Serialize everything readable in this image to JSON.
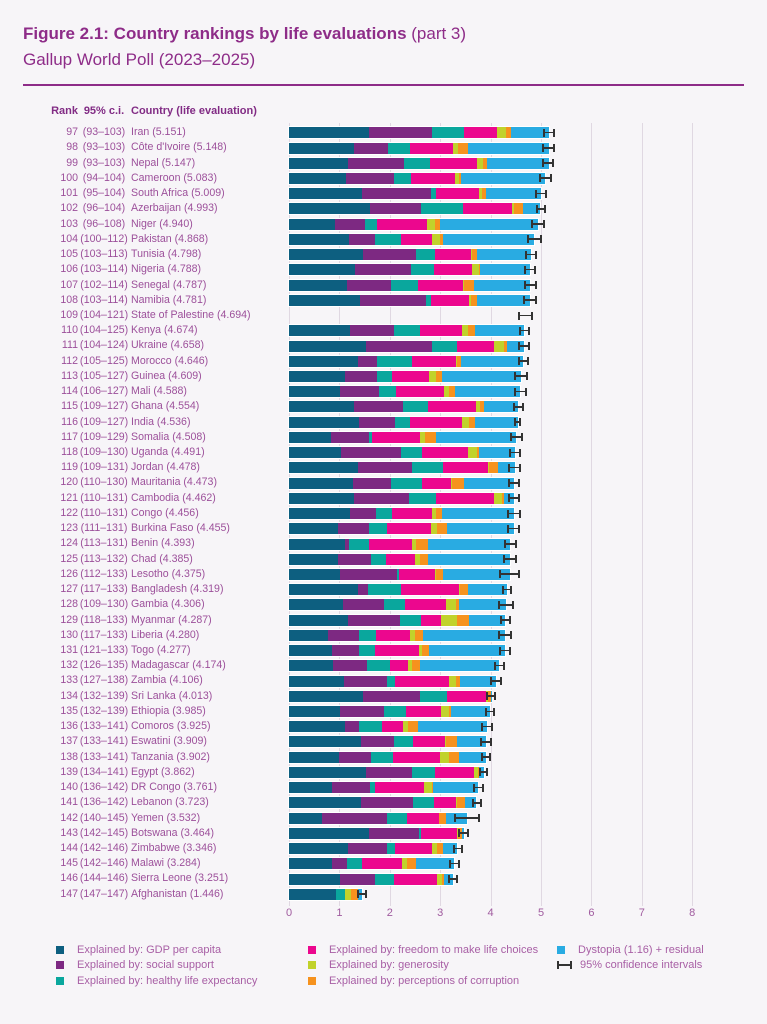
{
  "page": {
    "title_bold": "Figure 2.1: Country rankings by life evaluations",
    "title_tail": " (part 3)",
    "subtitle": "Gallup World Poll (2023–2025)"
  },
  "table_header": {
    "rank": "Rank",
    "ci": "95% c.i.",
    "country": "Country (life evaluation)"
  },
  "colors": {
    "gdp": "#0d5f80",
    "social": "#7d2982",
    "healthy": "#0aa79d",
    "freedom": "#ec078e",
    "generosity": "#c1d22b",
    "corruption": "#f6921e",
    "residual": "#29abe2",
    "title": "#8e2c88",
    "row_text": "#9c4f9a",
    "header_text": "#822c85",
    "axis_text": "#a05b9f",
    "legend_text": "#a85fa5",
    "gridline": "#e0d8e2",
    "error_bar": "#333333",
    "background": "#f7f5f8"
  },
  "legend": {
    "columns": [
      [
        {
          "key": "gdp",
          "label": "Explained by: GDP per capita"
        },
        {
          "key": "social",
          "label": "Explained by: social support"
        },
        {
          "key": "healthy",
          "label": "Explained by: healthy life expectancy"
        }
      ],
      [
        {
          "key": "freedom",
          "label": "Explained by: freedom to make life choices"
        },
        {
          "key": "generosity",
          "label": "Explained by: generosity"
        },
        {
          "key": "corruption",
          "label": "Explained by: perceptions of corruption"
        }
      ],
      [
        {
          "key": "residual",
          "label": "Dystopia (1.16) + residual"
        },
        {
          "key": "ci",
          "label": "95% confidence intervals"
        }
      ]
    ]
  },
  "chart_data": {
    "type": "bar",
    "orientation": "horizontal",
    "stacked": true,
    "title": "Figure 2.1: Country rankings by life evaluations (part 3)",
    "subtitle": "Gallup World Poll (2023–2025)",
    "xlabel": "",
    "ylabel": "",
    "xlim": [
      0,
      8
    ],
    "x_ticks": [
      0,
      1,
      2,
      3,
      4,
      5,
      6,
      7,
      8
    ],
    "grid": true,
    "series_names": [
      "Explained by: GDP per capita",
      "Explained by: social support",
      "Explained by: healthy life expectancy",
      "Explained by: freedom to make life choices",
      "Explained by: generosity",
      "Explained by: perceptions of corruption",
      "Dystopia (1.16) + residual"
    ],
    "segment_keys": [
      "gdp",
      "social",
      "healthy",
      "freedom",
      "generosity",
      "corruption",
      "residual"
    ],
    "countries": [
      {
        "rank": 97,
        "ci": "(93–103)",
        "name": "Iran",
        "score": 5.151,
        "hw": 0.12,
        "seg": [
          1.58,
          1.25,
          0.64,
          0.65,
          0.18,
          0.1,
          0.75
        ]
      },
      {
        "rank": 98,
        "ci": "(93–103)",
        "name": "Côte d'Ivoire",
        "score": 5.148,
        "hw": 0.13,
        "seg": [
          1.28,
          0.69,
          0.43,
          0.86,
          0.09,
          0.2,
          1.6
        ]
      },
      {
        "rank": 99,
        "ci": "(93–103)",
        "name": "Nepal",
        "score": 5.147,
        "hw": 0.12,
        "seg": [
          1.18,
          1.1,
          0.51,
          0.95,
          0.1,
          0.08,
          1.23
        ]
      },
      {
        "rank": 100,
        "ci": "(94–104)",
        "name": "Cameroon",
        "score": 5.083,
        "hw": 0.13,
        "seg": [
          1.14,
          0.94,
          0.35,
          0.86,
          0.08,
          0.05,
          1.66
        ]
      },
      {
        "rank": 101,
        "ci": "(95–104)",
        "name": "South Africa",
        "score": 5.009,
        "hw": 0.12,
        "seg": [
          1.45,
          1.36,
          0.1,
          0.86,
          0.06,
          0.07,
          1.1
        ]
      },
      {
        "rank": 102,
        "ci": "(96–104)",
        "name": "Azerbaijan",
        "score": 4.993,
        "hw": 0.1,
        "seg": [
          1.6,
          1.01,
          0.84,
          0.97,
          0.04,
          0.18,
          0.35
        ]
      },
      {
        "rank": 103,
        "ci": "(96–108)",
        "name": "Niger",
        "score": 4.94,
        "hw": 0.14,
        "seg": [
          0.91,
          0.6,
          0.24,
          0.99,
          0.15,
          0.1,
          1.95
        ]
      },
      {
        "rank": 104,
        "ci": "(100–112)",
        "name": "Pakistan",
        "score": 4.868,
        "hw": 0.15,
        "seg": [
          1.2,
          0.51,
          0.52,
          0.61,
          0.15,
          0.07,
          1.81
        ]
      },
      {
        "rank": 105,
        "ci": "(103–113)",
        "name": "Tunisia",
        "score": 4.798,
        "hw": 0.12,
        "seg": [
          1.47,
          1.05,
          0.37,
          0.72,
          0.03,
          0.09,
          1.07
        ]
      },
      {
        "rank": 106,
        "ci": "(103–114)",
        "name": "Nigeria",
        "score": 4.788,
        "hw": 0.12,
        "seg": [
          1.3,
          1.13,
          0.44,
          0.76,
          0.15,
          0.02,
          0.99
        ]
      },
      {
        "rank": 107,
        "ci": "(102–114)",
        "name": "Senegal",
        "score": 4.787,
        "hw": 0.13,
        "seg": [
          1.16,
          0.87,
          0.52,
          0.9,
          0.02,
          0.2,
          1.12
        ]
      },
      {
        "rank": 108,
        "ci": "(103–114)",
        "name": "Namibia",
        "score": 4.781,
        "hw": 0.13,
        "seg": [
          1.4,
          1.31,
          0.1,
          0.77,
          0.03,
          0.12,
          1.05
        ]
      },
      {
        "rank": 109,
        "ci": "(104–121)",
        "name": "State of Palestine",
        "score": 4.694,
        "hw": 0.15,
        "no_breakdown": true,
        "seg": null
      },
      {
        "rank": 110,
        "ci": "(104–125)",
        "name": "Kenya",
        "score": 4.674,
        "hw": 0.11,
        "seg": [
          1.22,
          0.86,
          0.51,
          0.84,
          0.12,
          0.15,
          0.97
        ]
      },
      {
        "rank": 111,
        "ci": "(104–124)",
        "name": "Ukraine",
        "score": 4.658,
        "hw": 0.12,
        "seg": [
          1.53,
          1.31,
          0.5,
          0.73,
          0.2,
          0.05,
          0.34
        ]
      },
      {
        "rank": 112,
        "ci": "(105–125)",
        "name": "Morocco",
        "score": 4.646,
        "hw": 0.11,
        "seg": [
          1.36,
          0.39,
          0.69,
          0.88,
          0.02,
          0.07,
          1.24
        ]
      },
      {
        "rank": 113,
        "ci": "(105–127)",
        "name": "Guinea",
        "score": 4.609,
        "hw": 0.14,
        "seg": [
          1.12,
          0.63,
          0.3,
          0.73,
          0.13,
          0.13,
          1.57
        ]
      },
      {
        "rank": 114,
        "ci": "(106–127)",
        "name": "Mali",
        "score": 4.588,
        "hw": 0.13,
        "seg": [
          1.02,
          0.76,
          0.35,
          0.95,
          0.09,
          0.13,
          1.29
        ]
      },
      {
        "rank": 115,
        "ci": "(109–127)",
        "name": "Ghana",
        "score": 4.554,
        "hw": 0.11,
        "seg": [
          1.29,
          0.97,
          0.49,
          0.97,
          0.08,
          0.07,
          0.68
        ]
      },
      {
        "rank": 116,
        "ci": "(109–127)",
        "name": "India",
        "score": 4.536,
        "hw": 0.07,
        "seg": [
          1.38,
          0.73,
          0.3,
          1.02,
          0.15,
          0.12,
          0.84
        ]
      },
      {
        "rank": 117,
        "ci": "(109–129)",
        "name": "Somalia",
        "score": 4.508,
        "hw": 0.13,
        "seg": [
          0.83,
          0.76,
          0.05,
          0.96,
          0.1,
          0.22,
          1.59
        ]
      },
      {
        "rank": 118,
        "ci": "(109–130)",
        "name": "Uganda",
        "score": 4.491,
        "hw": 0.12,
        "seg": [
          1.04,
          1.18,
          0.41,
          0.92,
          0.19,
          0.03,
          0.72
        ]
      },
      {
        "rank": 119,
        "ci": "(109–131)",
        "name": "Jordan",
        "score": 4.478,
        "hw": 0.13,
        "seg": [
          1.36,
          1.08,
          0.62,
          0.89,
          0.01,
          0.19,
          0.33
        ]
      },
      {
        "rank": 120,
        "ci": "(110–130)",
        "name": "Mauritania",
        "score": 4.473,
        "hw": 0.12,
        "seg": [
          1.27,
          0.76,
          0.61,
          0.58,
          0.02,
          0.24,
          0.99
        ]
      },
      {
        "rank": 121,
        "ci": "(110–131)",
        "name": "Cambodia",
        "score": 4.462,
        "hw": 0.12,
        "seg": [
          1.29,
          1.09,
          0.53,
          1.16,
          0.15,
          0.04,
          0.2
        ]
      },
      {
        "rank": 122,
        "ci": "(110–131)",
        "name": "Congo",
        "score": 4.456,
        "hw": 0.14,
        "seg": [
          1.21,
          0.51,
          0.33,
          0.78,
          0.08,
          0.12,
          1.43
        ]
      },
      {
        "rank": 123,
        "ci": "(111–131)",
        "name": "Burkina Faso",
        "score": 4.455,
        "hw": 0.13,
        "seg": [
          0.97,
          0.61,
          0.37,
          0.86,
          0.13,
          0.2,
          1.32
        ]
      },
      {
        "rank": 124,
        "ci": "(113–131)",
        "name": "Benin",
        "score": 4.393,
        "hw": 0.13,
        "seg": [
          1.12,
          0.08,
          0.38,
          0.86,
          0.09,
          0.22,
          1.64
        ]
      },
      {
        "rank": 125,
        "ci": "(113–132)",
        "name": "Chad",
        "score": 4.385,
        "hw": 0.14,
        "seg": [
          0.97,
          0.65,
          0.31,
          0.58,
          0.1,
          0.14,
          1.64
        ]
      },
      {
        "rank": 126,
        "ci": "(112–133)",
        "name": "Lesotho",
        "score": 4.375,
        "hw": 0.21,
        "seg": [
          1.01,
          1.14,
          0.03,
          0.72,
          0.02,
          0.13,
          1.33
        ]
      },
      {
        "rank": 127,
        "ci": "(117–133)",
        "name": "Bangladesh",
        "score": 4.319,
        "hw": 0.1,
        "seg": [
          1.36,
          0.21,
          0.66,
          1.15,
          0.02,
          0.15,
          0.77
        ]
      },
      {
        "rank": 128,
        "ci": "(109–130)",
        "name": "Gambia",
        "score": 4.306,
        "hw": 0.15,
        "seg": [
          1.07,
          0.81,
          0.42,
          0.81,
          0.2,
          0.07,
          0.92
        ]
      },
      {
        "rank": 129,
        "ci": "(118–133)",
        "name": "Myanmar",
        "score": 4.287,
        "hw": 0.11,
        "seg": [
          1.18,
          1.02,
          0.41,
          0.4,
          0.33,
          0.24,
          0.71
        ]
      },
      {
        "rank": 130,
        "ci": "(117–133)",
        "name": "Liberia",
        "score": 4.28,
        "hw": 0.14,
        "seg": [
          0.78,
          0.6,
          0.34,
          0.69,
          0.09,
          0.16,
          1.62
        ]
      },
      {
        "rank": 131,
        "ci": "(121–133)",
        "name": "Togo",
        "score": 4.277,
        "hw": 0.12,
        "seg": [
          0.85,
          0.53,
          0.33,
          0.86,
          0.07,
          0.14,
          1.5
        ]
      },
      {
        "rank": 132,
        "ci": "(126–135)",
        "name": "Madagascar",
        "score": 4.174,
        "hw": 0.11,
        "seg": [
          0.87,
          0.68,
          0.45,
          0.36,
          0.08,
          0.15,
          1.58
        ]
      },
      {
        "rank": 133,
        "ci": "(127–138)",
        "name": "Zambia",
        "score": 4.106,
        "hw": 0.12,
        "seg": [
          1.09,
          0.86,
          0.16,
          1.06,
          0.14,
          0.08,
          0.72
        ]
      },
      {
        "rank": 134,
        "ci": "(132–139)",
        "name": "Sri Lanka",
        "score": 4.013,
        "hw": 0.1,
        "seg": [
          1.47,
          1.12,
          0.55,
          0.76,
          0.04,
          0.06,
          0.01
        ]
      },
      {
        "rank": 135,
        "ci": "(132–139)",
        "name": "Ethiopia",
        "score": 3.985,
        "hw": 0.1,
        "seg": [
          1.01,
          0.88,
          0.44,
          0.68,
          0.16,
          0.05,
          0.76
        ]
      },
      {
        "rank": 136,
        "ci": "(133–141)",
        "name": "Comoros",
        "score": 3.925,
        "hw": 0.12,
        "seg": [
          1.12,
          0.27,
          0.46,
          0.41,
          0.1,
          0.2,
          1.37
        ]
      },
      {
        "rank": 137,
        "ci": "(133–141)",
        "name": "Eswatini",
        "score": 3.909,
        "hw": 0.12,
        "seg": [
          1.42,
          0.66,
          0.39,
          0.63,
          0.02,
          0.21,
          0.57
        ]
      },
      {
        "rank": 138,
        "ci": "(133–141)",
        "name": "Tanzania",
        "score": 3.902,
        "hw": 0.1,
        "seg": [
          1.0,
          0.62,
          0.45,
          0.92,
          0.19,
          0.2,
          0.52
        ]
      },
      {
        "rank": 139,
        "ci": "(134–141)",
        "name": "Egypt",
        "score": 3.862,
        "hw": 0.09,
        "seg": [
          1.53,
          0.91,
          0.45,
          0.78,
          0.09,
          0.02,
          0.08
        ]
      },
      {
        "rank": 140,
        "ci": "(136–142)",
        "name": "DR Congo",
        "score": 3.761,
        "hw": 0.11,
        "seg": [
          0.85,
          0.75,
          0.11,
          0.97,
          0.16,
          0.02,
          0.9
        ]
      },
      {
        "rank": 141,
        "ci": "(136–142)",
        "name": "Lebanon",
        "score": 3.723,
        "hw": 0.1,
        "seg": [
          1.42,
          1.04,
          0.42,
          0.44,
          0.02,
          0.15,
          0.23
        ]
      },
      {
        "rank": 142,
        "ci": "(140–145)",
        "name": "Yemen",
        "score": 3.532,
        "hw": 0.26,
        "seg": [
          0.65,
          1.3,
          0.4,
          0.62,
          0.01,
          0.13,
          0.42
        ]
      },
      {
        "rank": 143,
        "ci": "(142–145)",
        "name": "Botswana",
        "score": 3.464,
        "hw": 0.11,
        "seg": [
          1.58,
          0.99,
          0.04,
          0.73,
          0.01,
          0.09,
          0.03
        ]
      },
      {
        "rank": 144,
        "ci": "(142–146)",
        "name": "Zimbabwe",
        "score": 3.346,
        "hw": 0.1,
        "seg": [
          1.18,
          0.77,
          0.16,
          0.73,
          0.1,
          0.12,
          0.28
        ]
      },
      {
        "rank": 145,
        "ci": "(142–146)",
        "name": "Malawi",
        "score": 3.284,
        "hw": 0.1,
        "seg": [
          0.85,
          0.31,
          0.29,
          0.79,
          0.11,
          0.18,
          0.75
        ]
      },
      {
        "rank": 146,
        "ci": "(144–146)",
        "name": "Sierra Leone",
        "score": 3.251,
        "hw": 0.1,
        "seg": [
          1.02,
          0.69,
          0.37,
          0.86,
          0.1,
          0.03,
          0.18
        ]
      },
      {
        "rank": 147,
        "ci": "(147–147)",
        "name": "Afghanistan",
        "score": 1.446,
        "hw": 0.1,
        "seg": [
          0.93,
          0.0,
          0.19,
          0.0,
          0.12,
          0.12,
          0.09
        ]
      }
    ]
  }
}
